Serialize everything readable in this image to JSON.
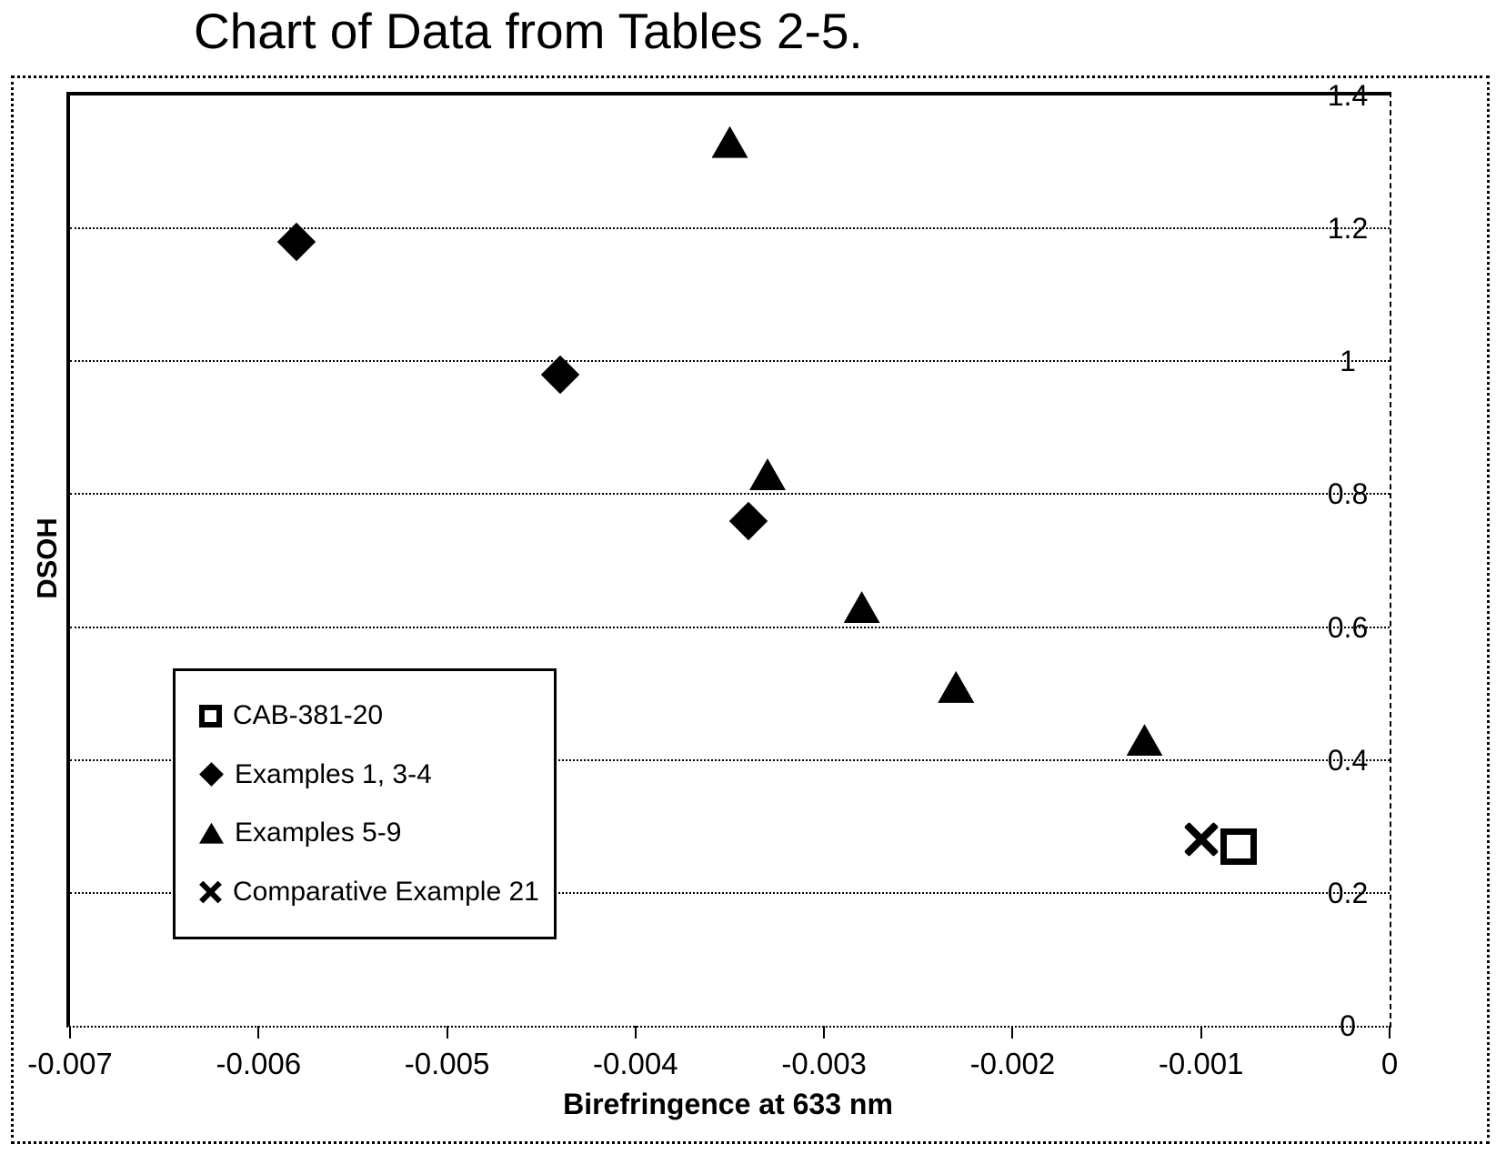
{
  "title": "Chart of Data from Tables 2-5.",
  "chart_data": {
    "type": "scatter",
    "title": "Chart of Data from Tables 2-5.",
    "xlabel": "Birefringence at 633 nm",
    "ylabel": "DSOH",
    "xlim": [
      -0.007,
      0
    ],
    "ylim": [
      0,
      1.4
    ],
    "x_ticks": [
      -0.007,
      -0.006,
      -0.005,
      -0.004,
      -0.003,
      -0.002,
      -0.001,
      0
    ],
    "x_tick_labels": [
      "-0.007",
      "-0.006",
      "-0.005",
      "-0.004",
      "-0.003",
      "-0.002",
      "-0.001",
      "0"
    ],
    "y_ticks": [
      0,
      0.2,
      0.4,
      0.6,
      0.8,
      1,
      1.2,
      1.4
    ],
    "y_tick_labels": [
      "0",
      "0.2",
      "0.4",
      "0.6",
      "0.8",
      "1",
      "1.2",
      "1.4"
    ],
    "grid": "horizontal-dotted",
    "y_axis_labels_position": "right",
    "legend_position": "inside-lower-left",
    "colors": {
      "foreground": "#000000",
      "background": "#ffffff"
    },
    "series": [
      {
        "name": "CAB-381-20",
        "marker": "open-square",
        "points": [
          [
            -0.0008,
            0.27
          ]
        ]
      },
      {
        "name": "Examples 1, 3-4",
        "marker": "filled-diamond",
        "points": [
          [
            -0.0058,
            1.18
          ],
          [
            -0.0044,
            0.98
          ],
          [
            -0.0034,
            0.76
          ]
        ]
      },
      {
        "name": "Examples 5-9",
        "marker": "filled-triangle",
        "points": [
          [
            -0.0035,
            1.33
          ],
          [
            -0.0033,
            0.83
          ],
          [
            -0.0028,
            0.63
          ],
          [
            -0.0023,
            0.51
          ],
          [
            -0.0013,
            0.43
          ]
        ]
      },
      {
        "name": "Comparative Example 21",
        "marker": "x-cross",
        "points": [
          [
            -0.001,
            0.28
          ]
        ]
      }
    ]
  }
}
